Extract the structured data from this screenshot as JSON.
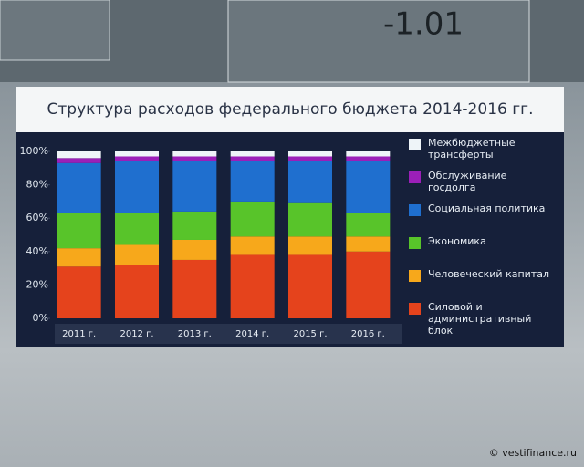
{
  "background_text": "-1.01",
  "watermark": "© vestifinance.ru",
  "chart_data": {
    "type": "stacked_bar",
    "title": "Структура расходов федерального бюджета 2014-2016 гг.",
    "categories": [
      "2011 г.",
      "2012 г.",
      "2013 г.",
      "2014 г.",
      "2015 г.",
      "2016 г."
    ],
    "series": [
      {
        "name": "Силовой и административный блок",
        "color": "#e5431c",
        "values": [
          31,
          32,
          35,
          38,
          38,
          40
        ]
      },
      {
        "name": "Человеческий капитал",
        "color": "#f7a81b",
        "values": [
          11,
          12,
          12,
          11,
          11,
          9
        ]
      },
      {
        "name": "Экономика",
        "color": "#58c42a",
        "values": [
          21,
          19,
          17,
          21,
          20,
          14
        ]
      },
      {
        "name": "Социальная политика",
        "color": "#1f6fcf",
        "values": [
          30,
          31,
          30,
          24,
          25,
          31
        ]
      },
      {
        "name": "Обслуживание госдолга",
        "color": "#9b1fb8",
        "values": [
          3,
          3,
          3,
          3,
          3,
          3
        ]
      },
      {
        "name": "Межбюджетные трансферты",
        "color": "#eef4f8",
        "values": [
          4,
          3,
          3,
          3,
          3,
          3
        ]
      }
    ],
    "ylim": [
      0,
      100
    ],
    "yticks": [
      {
        "value": 0,
        "label": "0%"
      },
      {
        "value": 20,
        "label": "20%"
      },
      {
        "value": 40,
        "label": "40%"
      },
      {
        "value": 60,
        "label": "60%"
      },
      {
        "value": 80,
        "label": "80%"
      },
      {
        "value": 100,
        "label": "100%"
      }
    ]
  }
}
